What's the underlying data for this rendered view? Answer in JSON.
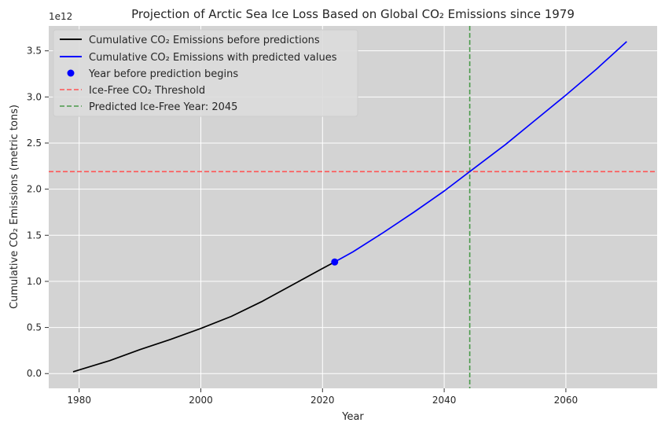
{
  "chart_data": {
    "type": "line",
    "title": "Projection of Arctic Sea Ice Loss Based on Global CO₂ Emissions since 1979",
    "xlabel": "Year",
    "ylabel": "Cumulative CO₂ Emissions (metric tons)",
    "y_offset_label": "1e12",
    "xlim": [
      1975,
      2075
    ],
    "ylim": [
      -0.16,
      3.77
    ],
    "y_unit_scale": 1000000000000.0,
    "x_ticks": [
      1980,
      2000,
      2020,
      2040,
      2060
    ],
    "x_tick_labels": [
      "1980",
      "2000",
      "2020",
      "2040",
      "2060"
    ],
    "y_ticks": [
      0.0,
      0.5,
      1.0,
      1.5,
      2.0,
      2.5,
      3.0,
      3.5
    ],
    "y_tick_labels": [
      "0.0",
      "0.5",
      "1.0",
      "1.5",
      "2.0",
      "2.5",
      "3.0",
      "3.5"
    ],
    "grid": true,
    "background": "#d3d3d3",
    "legend_position": "top-left",
    "series": [
      {
        "name": "Cumulative CO₂ Emissions before predictions",
        "color": "#000000",
        "x": [
          1979,
          1985,
          1990,
          1995,
          2000,
          2005,
          2010,
          2015,
          2020,
          2022
        ],
        "y": [
          0.02,
          0.14,
          0.26,
          0.37,
          0.49,
          0.62,
          0.78,
          0.96,
          1.14,
          1.21
        ]
      },
      {
        "name": "Cumulative CO₂ Emissions with predicted values",
        "color": "#0000ff",
        "x": [
          2022,
          2025,
          2030,
          2035,
          2040,
          2045,
          2050,
          2055,
          2060,
          2065,
          2070
        ],
        "y": [
          1.21,
          1.32,
          1.53,
          1.75,
          1.98,
          2.23,
          2.48,
          2.75,
          3.02,
          3.3,
          3.6
        ]
      }
    ],
    "marker": {
      "name": "Year before prediction begins",
      "color": "#0000ff",
      "x": 2022,
      "y": 1.21
    },
    "hline": {
      "name": "Ice-Free CO₂ Threshold",
      "color": "#ff5555",
      "y": 2.19
    },
    "vline": {
      "name": "Predicted Ice-Free Year: 2045",
      "color": "#4a9a4a",
      "x": 2044.2
    }
  }
}
